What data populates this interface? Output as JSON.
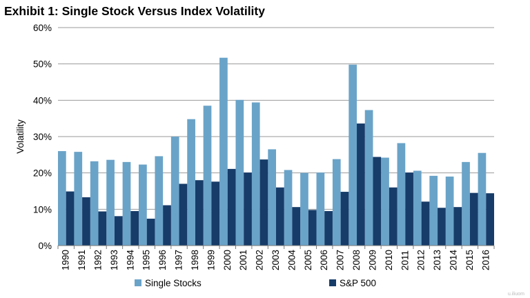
{
  "chart_data": {
    "type": "bar",
    "title": "Exhibit 1: Single Stock Versus Index Volatility",
    "ylabel": "Volatility",
    "xlabel": "",
    "ylim": [
      0,
      60
    ],
    "ytick_values": [
      0,
      10,
      20,
      30,
      40,
      50,
      60
    ],
    "ytick_labels": [
      "0%",
      "10%",
      "20%",
      "30%",
      "40%",
      "50%",
      "60%"
    ],
    "grid": true,
    "legend_position": "bottom",
    "categories": [
      "1990",
      "1991",
      "1992",
      "1993",
      "1994",
      "1995",
      "1996",
      "1997",
      "1998",
      "1999",
      "2000",
      "2001",
      "2002",
      "2003",
      "2004",
      "2005",
      "2006",
      "2007",
      "2008",
      "2009",
      "2010",
      "2011",
      "2012",
      "2013",
      "2014",
      "2015",
      "2016"
    ],
    "series": [
      {
        "name": "Single Stocks",
        "color": "#6aa3c8",
        "values": [
          26,
          25.8,
          23.2,
          23.6,
          23,
          22.3,
          24.6,
          30,
          34.8,
          38.5,
          51.7,
          40.1,
          39.4,
          26.5,
          20.8,
          20,
          20.1,
          23.8,
          49.8,
          37.3,
          24.2,
          28.2,
          20.6,
          19.2,
          19,
          23,
          25.5
        ]
      },
      {
        "name": "S&P 500",
        "color": "#173c69",
        "values": [
          14.9,
          13.3,
          9.4,
          8.1,
          9.5,
          7.4,
          11.1,
          17,
          18,
          17.6,
          21.1,
          20.1,
          23.7,
          16,
          10.6,
          9.8,
          9.5,
          14.8,
          33.6,
          24.4,
          16,
          20.1,
          12.1,
          10.4,
          10.6,
          14.5,
          14.4
        ]
      }
    ]
  },
  "credit_text": "u.iliuom"
}
